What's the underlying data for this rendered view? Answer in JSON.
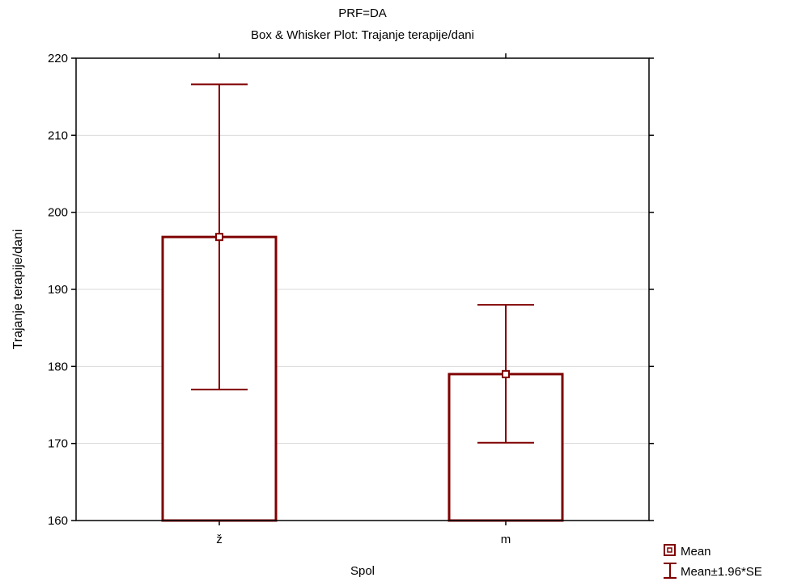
{
  "chart_data": {
    "type": "box",
    "title": "PRF=DA",
    "subtitle": "Box & Whisker Plot: Trajanje terapije/dani",
    "xlabel": "Spol",
    "ylabel": "Trajanje terapije/dani",
    "ylim": [
      160,
      220
    ],
    "yticks": [
      160,
      170,
      180,
      190,
      200,
      210,
      220
    ],
    "grid": true,
    "categories": [
      "ž",
      "m"
    ],
    "mean": [
      196.8,
      179.0
    ],
    "lower": [
      177.0,
      170.1
    ],
    "upper": [
      216.6,
      188.0
    ],
    "legend": {
      "position": "bottom-right",
      "entries": [
        "Mean",
        "Mean±1.96*SE"
      ]
    },
    "colors": {
      "series": "#800000",
      "grid": "#d9d9d9",
      "frame": "#000000"
    }
  }
}
